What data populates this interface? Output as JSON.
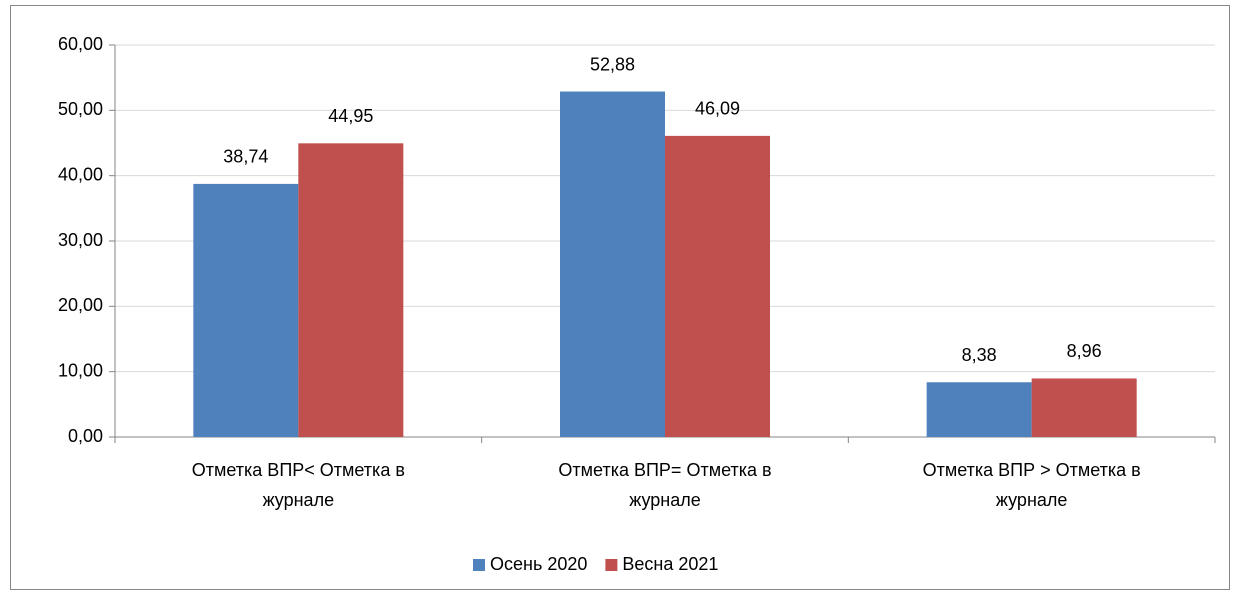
{
  "chart_data": {
    "type": "bar",
    "categories": [
      "Отметка ВПР< Отметка в журнале",
      "Отметка ВПР= Отметка в журнале",
      "Отметка ВПР > Отметка в журнале"
    ],
    "series": [
      {
        "name": "Осень 2020",
        "color": "#4f81bd",
        "values": [
          38.74,
          52.88,
          8.38
        ],
        "value_labels": [
          "38,74",
          "52,88",
          "8,38"
        ]
      },
      {
        "name": "Весна 2021",
        "color": "#c0504d",
        "values": [
          44.95,
          46.09,
          8.96
        ],
        "value_labels": [
          "44,95",
          "46,09",
          "8,96"
        ]
      }
    ],
    "ylim": [
      0,
      60
    ],
    "yticks": [
      {
        "value": 0,
        "label": "0,00"
      },
      {
        "value": 10,
        "label": "10,00"
      },
      {
        "value": 20,
        "label": "20,00"
      },
      {
        "value": 30,
        "label": "30,00"
      },
      {
        "value": 40,
        "label": "40,00"
      },
      {
        "value": 50,
        "label": "50,00"
      },
      {
        "value": 60,
        "label": "60,00"
      }
    ],
    "grid": true,
    "legend": "bottom"
  }
}
